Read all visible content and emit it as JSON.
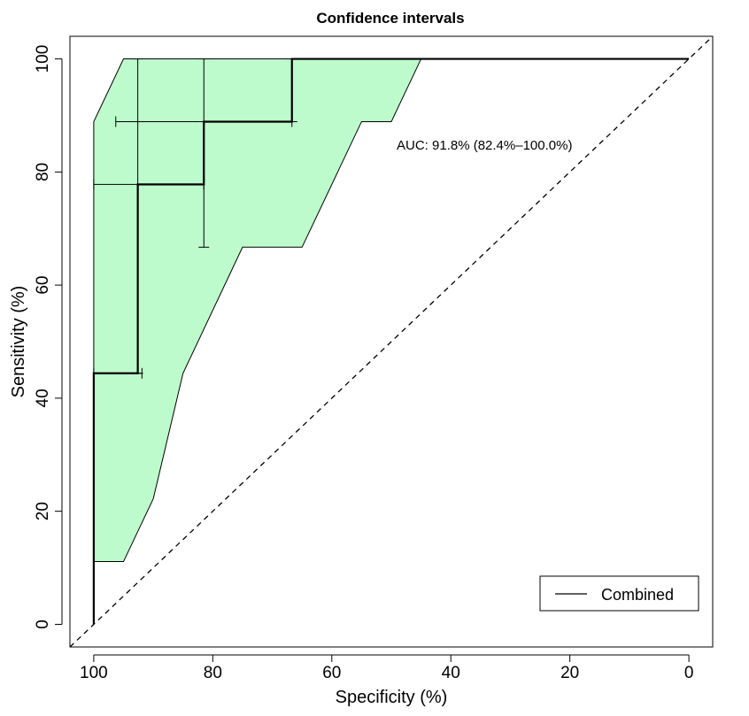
{
  "chart_data": {
    "type": "line",
    "title": "Confidence intervals",
    "xlabel": "Specificity (%)",
    "ylabel": "Sensitivity (%)",
    "x_reversed": true,
    "xlim": [
      104,
      -4
    ],
    "ylim": [
      -4,
      104
    ],
    "xticks": [
      100,
      80,
      60,
      40,
      20,
      0
    ],
    "yticks": [
      0,
      20,
      40,
      60,
      80,
      100
    ],
    "xtick_labels": [
      "100",
      "80",
      "60",
      "40",
      "20",
      "0"
    ],
    "ytick_labels": [
      "0",
      "20",
      "40",
      "60",
      "80",
      "100"
    ],
    "ci_band": {
      "upper": [
        {
          "x": 100,
          "y": 0
        },
        {
          "x": 100,
          "y": 88.9
        },
        {
          "x": 95,
          "y": 100
        },
        {
          "x": 45,
          "y": 100
        }
      ],
      "lower": [
        {
          "x": 100,
          "y": 11.1
        },
        {
          "x": 95,
          "y": 11.1
        },
        {
          "x": 90,
          "y": 22.2
        },
        {
          "x": 85,
          "y": 44.4
        },
        {
          "x": 75,
          "y": 66.7
        },
        {
          "x": 65,
          "y": 66.7
        },
        {
          "x": 55,
          "y": 88.9
        },
        {
          "x": 50,
          "y": 88.9
        },
        {
          "x": 45,
          "y": 100
        }
      ],
      "fill": "#bdfbcc"
    },
    "series": [
      {
        "name": "Combined",
        "color": "#000000",
        "points": [
          {
            "x": 100,
            "y": 0
          },
          {
            "x": 100,
            "y": 44.4
          },
          {
            "x": 92.6,
            "y": 44.4
          },
          {
            "x": 92.6,
            "y": 77.8
          },
          {
            "x": 81.5,
            "y": 77.8
          },
          {
            "x": 81.5,
            "y": 88.9
          },
          {
            "x": 66.7,
            "y": 88.9
          },
          {
            "x": 66.7,
            "y": 100
          },
          {
            "x": 0,
            "y": 100
          }
        ]
      }
    ],
    "ci_bars": [
      {
        "type": "h",
        "y": 100,
        "x1": 92.6,
        "x2": 92.6,
        "vy1": 100,
        "vy2": 44.4,
        "x": 92.6
      },
      {
        "type": "v",
        "x": 92.6,
        "y1": 44.4,
        "y2": 100
      },
      {
        "type": "v",
        "x": 81.5,
        "y1": 66.7,
        "y2": 100
      },
      {
        "type": "v",
        "x": 66.7,
        "y1": 88.9,
        "y2": 100
      },
      {
        "type": "h",
        "y": 88.9,
        "x1": 96.3,
        "x2": 66.7
      },
      {
        "type": "h",
        "y": 77.8,
        "x1": 100,
        "x2": 81.5
      },
      {
        "type": "h",
        "y": 44.4,
        "x1": 100,
        "x2": 91.9
      }
    ],
    "diagonal": {
      "from": {
        "x": 104,
        "y": -4
      },
      "to": {
        "x": -4,
        "y": 104
      }
    },
    "annotation": {
      "text": "AUC: 91.8% (82.4%–100.0%)",
      "x": 50,
      "y": 84
    },
    "legend": {
      "position": "bottom-right",
      "entries": [
        "Combined"
      ]
    }
  }
}
